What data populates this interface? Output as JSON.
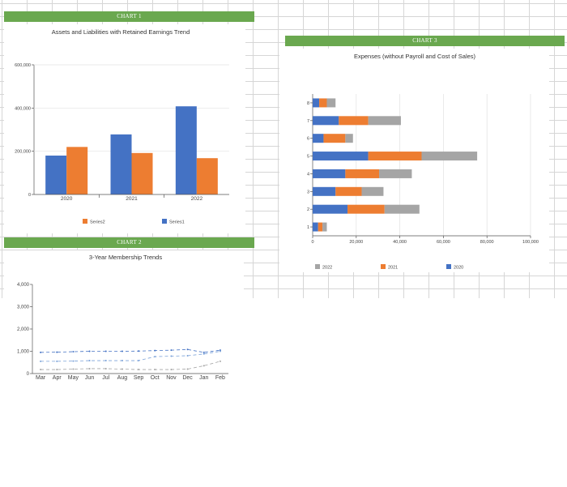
{
  "banners": {
    "chart1": "CHART 1",
    "chart2": "CHART 2",
    "chart3": "CHART 3"
  },
  "chart_data": [
    {
      "type": "bar",
      "title": "Assets and Liabilities with Retained Earnings Trend",
      "categories": [
        "2020",
        "2021",
        "2022"
      ],
      "series": [
        {
          "name": "Series1",
          "values": [
            180000,
            278000,
            408000
          ],
          "color": "#4472c4"
        },
        {
          "name": "Series2",
          "values": [
            220000,
            192000,
            168000
          ],
          "color": "#ed7d31"
        }
      ],
      "yticks": [
        "0",
        "200,000",
        "400,000",
        "600,000"
      ],
      "ylim": [
        0,
        600000
      ],
      "legend": [
        "Series2",
        "Series1"
      ],
      "legend_position": "bottom"
    },
    {
      "type": "line",
      "title": "3-Year Membership Trends",
      "categories": [
        "Mar",
        "Apr",
        "May",
        "Jun",
        "Jul",
        "Aug",
        "Sep",
        "Oct",
        "Nov",
        "Dec",
        "Jan",
        "Feb"
      ],
      "series": [
        {
          "values": [
            950,
            960,
            980,
            1000,
            1000,
            1000,
            1010,
            1030,
            1050,
            1080,
            950,
            1050
          ],
          "color": "#4472c4"
        },
        {
          "values": [
            550,
            550,
            560,
            580,
            580,
            580,
            580,
            760,
            780,
            800,
            880,
            1000
          ],
          "color": "#7ba2d8"
        },
        {
          "values": [
            180,
            180,
            200,
            220,
            220,
            200,
            180,
            180,
            180,
            200,
            350,
            550
          ],
          "color": "#a5a5a5"
        }
      ],
      "yticks": [
        "0",
        "1,000",
        "2,000",
        "3,000",
        "4,000"
      ],
      "ylim": [
        0,
        4000
      ]
    },
    {
      "type": "bar",
      "orientation": "horizontal",
      "stacked": true,
      "title": "Expenses (without Payroll and Cost of Sales)",
      "categories": [
        "1",
        "2",
        "3",
        "4",
        "5",
        "6",
        "7",
        "8"
      ],
      "series": [
        {
          "name": "2020",
          "values": [
            2500,
            16000,
            10500,
            15000,
            25500,
            5000,
            12000,
            3000
          ],
          "color": "#4472c4"
        },
        {
          "name": "2021",
          "values": [
            2000,
            17000,
            12000,
            15500,
            24500,
            10000,
            13500,
            3500
          ],
          "color": "#ed7d31"
        },
        {
          "name": "2022",
          "values": [
            2000,
            16000,
            10000,
            15000,
            25500,
            3500,
            15000,
            4000
          ],
          "color": "#a5a5a5"
        }
      ],
      "xticks": [
        "0",
        "20,000",
        "40,000",
        "60,000",
        "80,000",
        "100,000"
      ],
      "xlim": [
        0,
        100000
      ],
      "legend": [
        "2022",
        "2021",
        "2020"
      ],
      "legend_position": "bottom"
    }
  ]
}
